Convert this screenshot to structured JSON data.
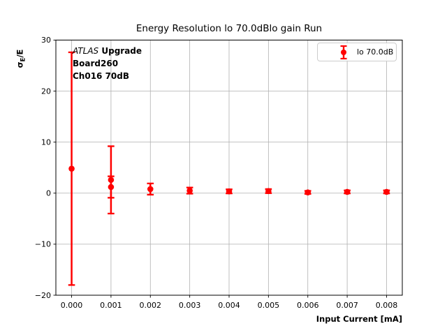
{
  "chart_data": {
    "type": "scatter",
    "title": "Energy Resolution lo 70.0dBlo gain Run",
    "xlabel": "Input Current [mA]",
    "ylabel": "σE/E",
    "ylabel_parts": {
      "sigma": "σ",
      "sub": "E",
      "rest": "/E"
    },
    "xlim": [
      -0.0004,
      0.0084
    ],
    "ylim": [
      -20,
      30
    ],
    "grid": true,
    "xticks": [
      {
        "v": 0.0,
        "label": "0.000"
      },
      {
        "v": 0.001,
        "label": "0.001"
      },
      {
        "v": 0.002,
        "label": "0.002"
      },
      {
        "v": 0.003,
        "label": "0.003"
      },
      {
        "v": 0.004,
        "label": "0.004"
      },
      {
        "v": 0.005,
        "label": "0.005"
      },
      {
        "v": 0.006,
        "label": "0.006"
      },
      {
        "v": 0.007,
        "label": "0.007"
      },
      {
        "v": 0.008,
        "label": "0.008"
      }
    ],
    "yticks": [
      {
        "v": -20,
        "label": "−20"
      },
      {
        "v": -10,
        "label": "−10"
      },
      {
        "v": 0,
        "label": "0"
      },
      {
        "v": 10,
        "label": "10"
      },
      {
        "v": 20,
        "label": "20"
      },
      {
        "v": 30,
        "label": "30"
      }
    ],
    "legend": {
      "position": "upper right",
      "entries": [
        {
          "label": "lo 70.0dB",
          "color": "#ff0000",
          "marker": "errorbar-point"
        }
      ]
    },
    "annotation": {
      "line1_italic": "ATLAS",
      "line1_bold": " Upgrade",
      "line2": "Board260",
      "line3": "Ch016 70dB"
    },
    "series": [
      {
        "name": "lo 70.0dB",
        "color": "#ff0000",
        "points": [
          {
            "x": 0.0,
            "y": 4.8,
            "yerr": 22.8
          },
          {
            "x": 0.001,
            "y": 2.6,
            "yerr": 6.6
          },
          {
            "x": 0.001,
            "y": 1.2,
            "yerr": 2.1
          },
          {
            "x": 0.002,
            "y": 0.8,
            "yerr": 1.1
          },
          {
            "x": 0.003,
            "y": 0.5,
            "yerr": 0.6
          },
          {
            "x": 0.004,
            "y": 0.35,
            "yerr": 0.4
          },
          {
            "x": 0.005,
            "y": 0.4,
            "yerr": 0.4
          },
          {
            "x": 0.006,
            "y": 0.15,
            "yerr": 0.3
          },
          {
            "x": 0.007,
            "y": 0.25,
            "yerr": 0.3
          },
          {
            "x": 0.008,
            "y": 0.25,
            "yerr": 0.3
          }
        ]
      }
    ],
    "colors": {
      "series": "#ff0000",
      "grid": "#b0b0b0",
      "spine": "#000000",
      "background": "#ffffff",
      "legend_border": "#cccccc"
    }
  }
}
